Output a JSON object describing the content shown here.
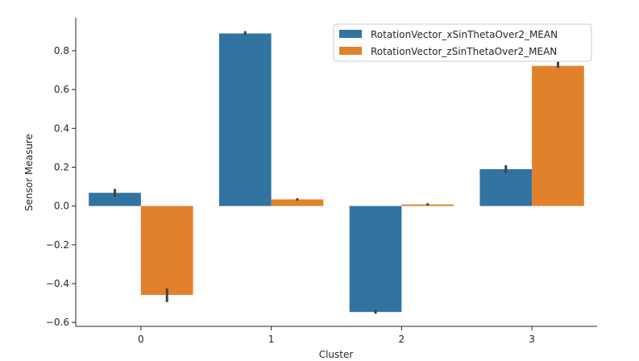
{
  "chart_data": {
    "type": "bar",
    "title": "",
    "xlabel": "Cluster",
    "ylabel": "Sensor Measure",
    "categories": [
      "0",
      "1",
      "2",
      "3"
    ],
    "ylim": [
      -0.62,
      0.97
    ],
    "yticks": [
      -0.6,
      -0.4,
      -0.2,
      0.0,
      0.2,
      0.4,
      0.6,
      0.8
    ],
    "ytick_labels": [
      "−0.6",
      "−0.4",
      "−0.2",
      "0.0",
      "0.2",
      "0.4",
      "0.6",
      "0.8"
    ],
    "grid": false,
    "legend_position": "top-right",
    "series": [
      {
        "name": "RotationVector_xSinThetaOver2_MEAN",
        "color": "#3274a1",
        "values": [
          0.068,
          0.889,
          -0.546,
          0.19
        ],
        "error_low": [
          0.048,
          0.88,
          -0.555,
          0.17
        ],
        "error_high": [
          0.088,
          0.901,
          -0.535,
          0.21
        ]
      },
      {
        "name": "RotationVector_zSinThetaOver2_MEAN",
        "color": "#e1812c",
        "values": [
          -0.458,
          0.034,
          0.008,
          0.722
        ],
        "error_low": [
          -0.495,
          0.028,
          0.002,
          0.712
        ],
        "error_high": [
          -0.425,
          0.04,
          0.014,
          0.743
        ]
      }
    ]
  }
}
